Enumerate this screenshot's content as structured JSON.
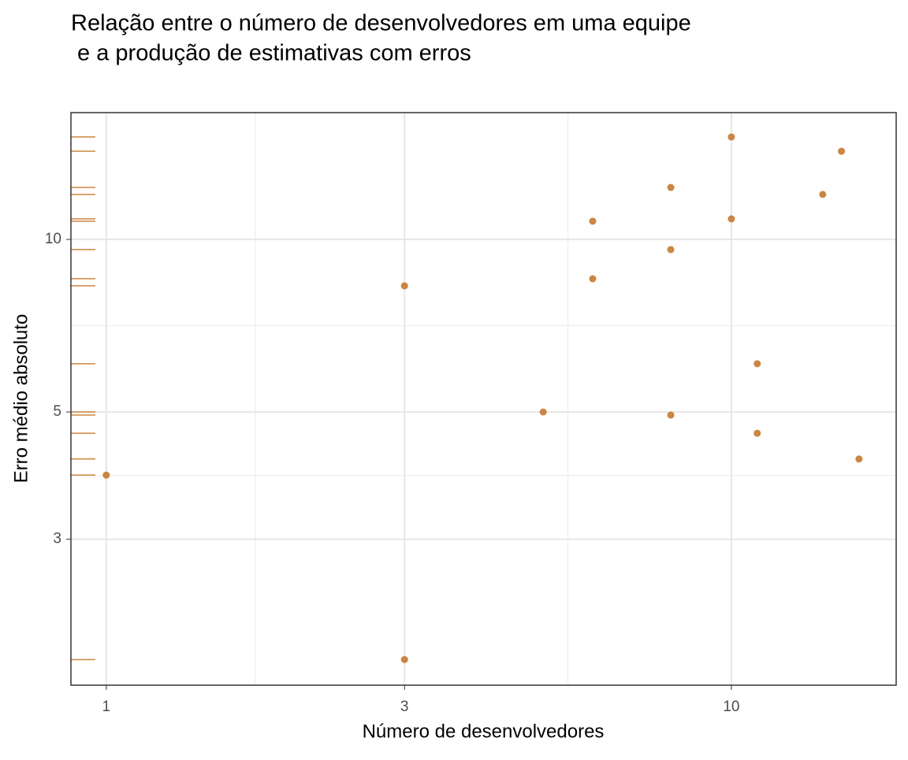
{
  "chart_data": {
    "type": "scatter",
    "title": [
      "Relação entre o número de desenvolvedores em uma equipe",
      " e a produção de estimativas com erros"
    ],
    "x_label": "Número de desenvolvedores",
    "y_label": "Erro médio absoluto",
    "x": [
      1,
      3,
      3,
      5,
      6,
      6,
      8,
      8,
      8,
      10,
      10,
      11,
      11,
      14,
      15,
      16
    ],
    "series": [
      {
        "color": "#cd853f",
        "values": [
          3.88,
          8.3,
          1.85,
          5.0,
          10.76,
          8.54,
          12.32,
          9.6,
          4.94,
          15.09,
          10.86,
          6.07,
          4.59,
          11.98,
          14.25,
          4.14
        ]
      }
    ],
    "log_x": true,
    "log_y": true,
    "y_rug": true,
    "grid": true,
    "xlim": [
      0.878,
      18.35
    ],
    "ylim": [
      1.669,
      16.64
    ],
    "xticks": [
      1,
      3,
      10
    ],
    "yticks": [
      3,
      5,
      10
    ]
  }
}
